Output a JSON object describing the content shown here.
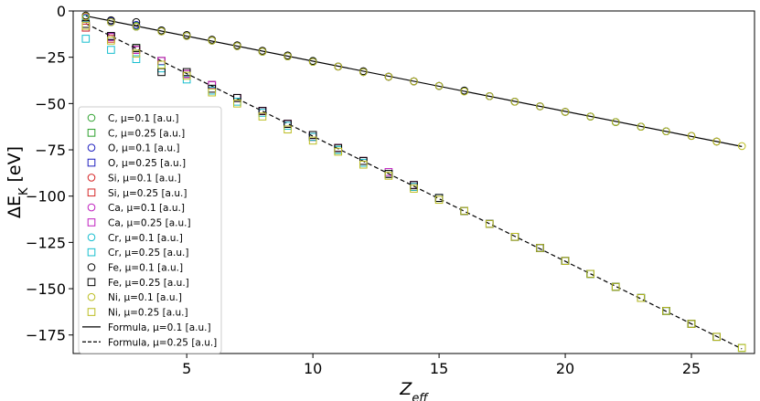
{
  "chart_data": {
    "type": "scatter",
    "xlabel": "Z_eff",
    "ylabel": "ΔE_K [eV]",
    "xlim": [
      0.5,
      27.5
    ],
    "ylim": [
      -185,
      0
    ],
    "xticks": [
      5,
      10,
      15,
      20,
      25
    ],
    "yticks": [
      0,
      -25,
      -50,
      -75,
      -100,
      -125,
      -150,
      -175
    ],
    "grid": false,
    "legend_position": "lower-left",
    "series": [
      {
        "name": "C, μ=0.1 [a.u.]",
        "marker": "circle",
        "color": "#2ca02c",
        "x": [
          1,
          2,
          3,
          4,
          5,
          6,
          7,
          8,
          9,
          10,
          22
        ],
        "y": [
          -4,
          -5.5,
          -8,
          -10.5,
          -13.5,
          -16,
          -19,
          -22,
          -24.5,
          -27,
          -60
        ]
      },
      {
        "name": "C, μ=0.25 [a.u.]",
        "marker": "square",
        "color": "#2ca02c",
        "x": [
          1,
          2,
          3,
          4,
          5,
          6,
          7,
          8,
          9,
          10,
          11,
          12,
          13,
          14,
          15,
          16,
          17,
          18,
          19,
          20,
          21,
          22,
          23,
          24,
          25,
          26,
          27
        ],
        "y": [
          -8,
          -14,
          -20,
          -27,
          -34,
          -40,
          -47,
          -54,
          -61,
          -68,
          -75,
          -81,
          -88,
          -95,
          -101,
          -108,
          -115,
          -122,
          -128,
          -135,
          -142,
          -149,
          -155,
          -162,
          -169,
          -176,
          -182
        ]
      },
      {
        "name": "O, μ=0.1 [a.u.]",
        "marker": "circle",
        "color": "#1f1fbf",
        "x": [
          1,
          2,
          3,
          4,
          5
        ],
        "y": [
          -3.5,
          -5.5,
          -7.5,
          -10.5,
          -13.5
        ]
      },
      {
        "name": "O, μ=0.25 [a.u.]",
        "marker": "square",
        "color": "#1f1fbf",
        "x": [
          1,
          2,
          3,
          4,
          5,
          6,
          7,
          8,
          9,
          10
        ],
        "y": [
          -9,
          -14,
          -21,
          -27,
          -34,
          -40,
          -47,
          -54,
          -61,
          -68
        ]
      },
      {
        "name": "Si, μ=0.1 [a.u.]",
        "marker": "circle",
        "color": "#d62728",
        "x": [
          1,
          2,
          3,
          4,
          5,
          6,
          7,
          8,
          9,
          10,
          11,
          12,
          13,
          14
        ],
        "y": [
          -3.5,
          -6,
          -8.5,
          -11,
          -13.5,
          -16,
          -19,
          -22,
          -24.5,
          -27.5,
          -30,
          -33,
          -35.5,
          -38
        ]
      },
      {
        "name": "Si, μ=0.25 [a.u.]",
        "marker": "square",
        "color": "#d62728",
        "x": [
          1,
          2,
          3,
          4,
          5,
          6,
          7,
          8,
          9,
          10,
          11,
          12,
          13,
          14
        ],
        "y": [
          -9,
          -15,
          -21,
          -27,
          -34,
          -40,
          -47,
          -54,
          -61,
          -68,
          -74,
          -81,
          -88,
          -95
        ]
      },
      {
        "name": "Ca, μ=0.1 [a.u.]",
        "marker": "circle",
        "color": "#bf1fbf",
        "x": [
          1,
          2,
          3,
          4,
          5,
          6,
          7,
          8,
          9,
          10,
          11,
          12,
          13,
          14,
          15,
          16,
          17,
          18,
          19,
          20
        ],
        "y": [
          -3.5,
          -6,
          -8.5,
          -11,
          -13.5,
          -16,
          -19,
          -22,
          -24.5,
          -27.5,
          -30,
          -33,
          -35.5,
          -38,
          -40.5,
          -43,
          -46,
          -49,
          -51.5,
          -54.5
        ]
      },
      {
        "name": "Ca, μ=0.25 [a.u.]",
        "marker": "square",
        "color": "#bf1fbf",
        "x": [
          1,
          2,
          3,
          4,
          5,
          6,
          7,
          8,
          9,
          10,
          11,
          12,
          13,
          14,
          15,
          16,
          17,
          18,
          19,
          20
        ],
        "y": [
          -8,
          -14,
          -21,
          -27,
          -34,
          -40,
          -47,
          -54,
          -61,
          -67,
          -74,
          -81,
          -87,
          -94,
          -101,
          -108,
          -115,
          -122,
          -128,
          -135
        ]
      },
      {
        "name": "Cr, μ=0.1 [a.u.]",
        "marker": "circle",
        "color": "#17becf",
        "x": [
          1,
          2,
          3,
          4,
          5,
          6,
          7,
          8,
          9,
          10,
          11,
          12,
          13,
          14,
          15,
          16,
          17,
          18,
          19,
          20,
          21,
          22,
          23,
          24
        ],
        "y": [
          -4,
          -6,
          -8.5,
          -11,
          -13.5,
          -16,
          -19,
          -22,
          -24.5,
          -27.5,
          -30,
          -33,
          -35.5,
          -38,
          -40.5,
          -43,
          -46,
          -49,
          -51.5,
          -54.5,
          -57,
          -60,
          -62.5,
          -65
        ]
      },
      {
        "name": "Cr, μ=0.25 [a.u.]",
        "marker": "square",
        "color": "#17becf",
        "x": [
          1,
          2,
          3,
          4,
          5,
          6,
          7,
          8,
          9,
          10,
          11,
          12,
          13,
          14,
          15,
          16,
          17,
          18,
          19,
          20,
          21,
          22,
          23,
          24
        ],
        "y": [
          -15,
          -21,
          -26,
          -31,
          -37,
          -43,
          -49,
          -55,
          -62,
          -68,
          -75,
          -82,
          -88,
          -95,
          -101,
          -108,
          -115,
          -122,
          -128,
          -135,
          -142,
          -149,
          -155,
          -162
        ]
      },
      {
        "name": "Fe, μ=0.1 [a.u.]",
        "marker": "circle",
        "color": "#000000",
        "x": [
          1,
          2,
          3,
          4,
          5,
          6,
          7,
          8,
          9,
          10,
          11,
          12,
          13,
          14,
          15,
          16,
          17,
          18,
          19,
          20,
          21,
          22,
          23,
          24,
          25,
          26
        ],
        "y": [
          -2.5,
          -5,
          -6,
          -10.5,
          -13,
          -15.5,
          -18.5,
          -21.5,
          -24,
          -27,
          -30,
          -32.5,
          -35.5,
          -38,
          -40.5,
          -43,
          -46,
          -49,
          -51.5,
          -54.5,
          -57,
          -60,
          -62.5,
          -65,
          -67.5,
          -70.5
        ]
      },
      {
        "name": "Fe, μ=0.25 [a.u.]",
        "marker": "square",
        "color": "#000000",
        "x": [
          1,
          2,
          3,
          4,
          5,
          6,
          7,
          8,
          9,
          10,
          11,
          12,
          13,
          14,
          15,
          16,
          17,
          18,
          19,
          20,
          21,
          22,
          23,
          24,
          25,
          26
        ],
        "y": [
          -7,
          -13.5,
          -20,
          -33,
          -33,
          -42,
          -47,
          -54,
          -61,
          -67,
          -74,
          -81,
          -88,
          -94,
          -101,
          -108,
          -115,
          -122,
          -128,
          -135,
          -142,
          -149,
          -155,
          -162,
          -169,
          -176
        ]
      },
      {
        "name": "Ni, μ=0.1 [a.u.]",
        "marker": "circle",
        "color": "#bcbd22",
        "x": [
          1,
          2,
          3,
          4,
          5,
          6,
          7,
          8,
          9,
          10,
          11,
          12,
          13,
          14,
          15,
          16,
          17,
          18,
          19,
          20,
          21,
          22,
          23,
          24,
          25,
          26,
          27
        ],
        "y": [
          -3,
          -6,
          -8.5,
          -11,
          -13.5,
          -16,
          -19,
          -22,
          -24.5,
          -27.5,
          -30,
          -33,
          -35.5,
          -38,
          -40.5,
          -43.5,
          -46,
          -49,
          -51.5,
          -54.5,
          -57,
          -60,
          -62.5,
          -65,
          -67.5,
          -70.5,
          -73
        ]
      },
      {
        "name": "Ni, μ=0.25 [a.u.]",
        "marker": "square",
        "color": "#bcbd22",
        "x": [
          1,
          2,
          3,
          4,
          5,
          6,
          7,
          8,
          9,
          10,
          11,
          12,
          13,
          14,
          15,
          16,
          17,
          18,
          19,
          20,
          21,
          22,
          23,
          24,
          25,
          26,
          27
        ],
        "y": [
          -8,
          -16,
          -23,
          -29,
          -35,
          -44,
          -50,
          -57,
          -64,
          -70,
          -76,
          -83,
          -89,
          -96,
          -102,
          -108,
          -115,
          -122,
          -128,
          -135,
          -142,
          -149,
          -155,
          -162,
          -169,
          -176,
          -182
        ]
      }
    ],
    "lines": [
      {
        "name": "Formula, μ=0.1 [a.u.]",
        "style": "solid",
        "color": "#000000",
        "x": [
          1,
          27
        ],
        "y": [
          -2.7,
          -73.2
        ]
      },
      {
        "name": "Formula, μ=0.25 [a.u.]",
        "style": "dashed",
        "color": "#000000",
        "x": [
          1,
          27
        ],
        "y": [
          -6.8,
          -182.5
        ]
      }
    ]
  }
}
